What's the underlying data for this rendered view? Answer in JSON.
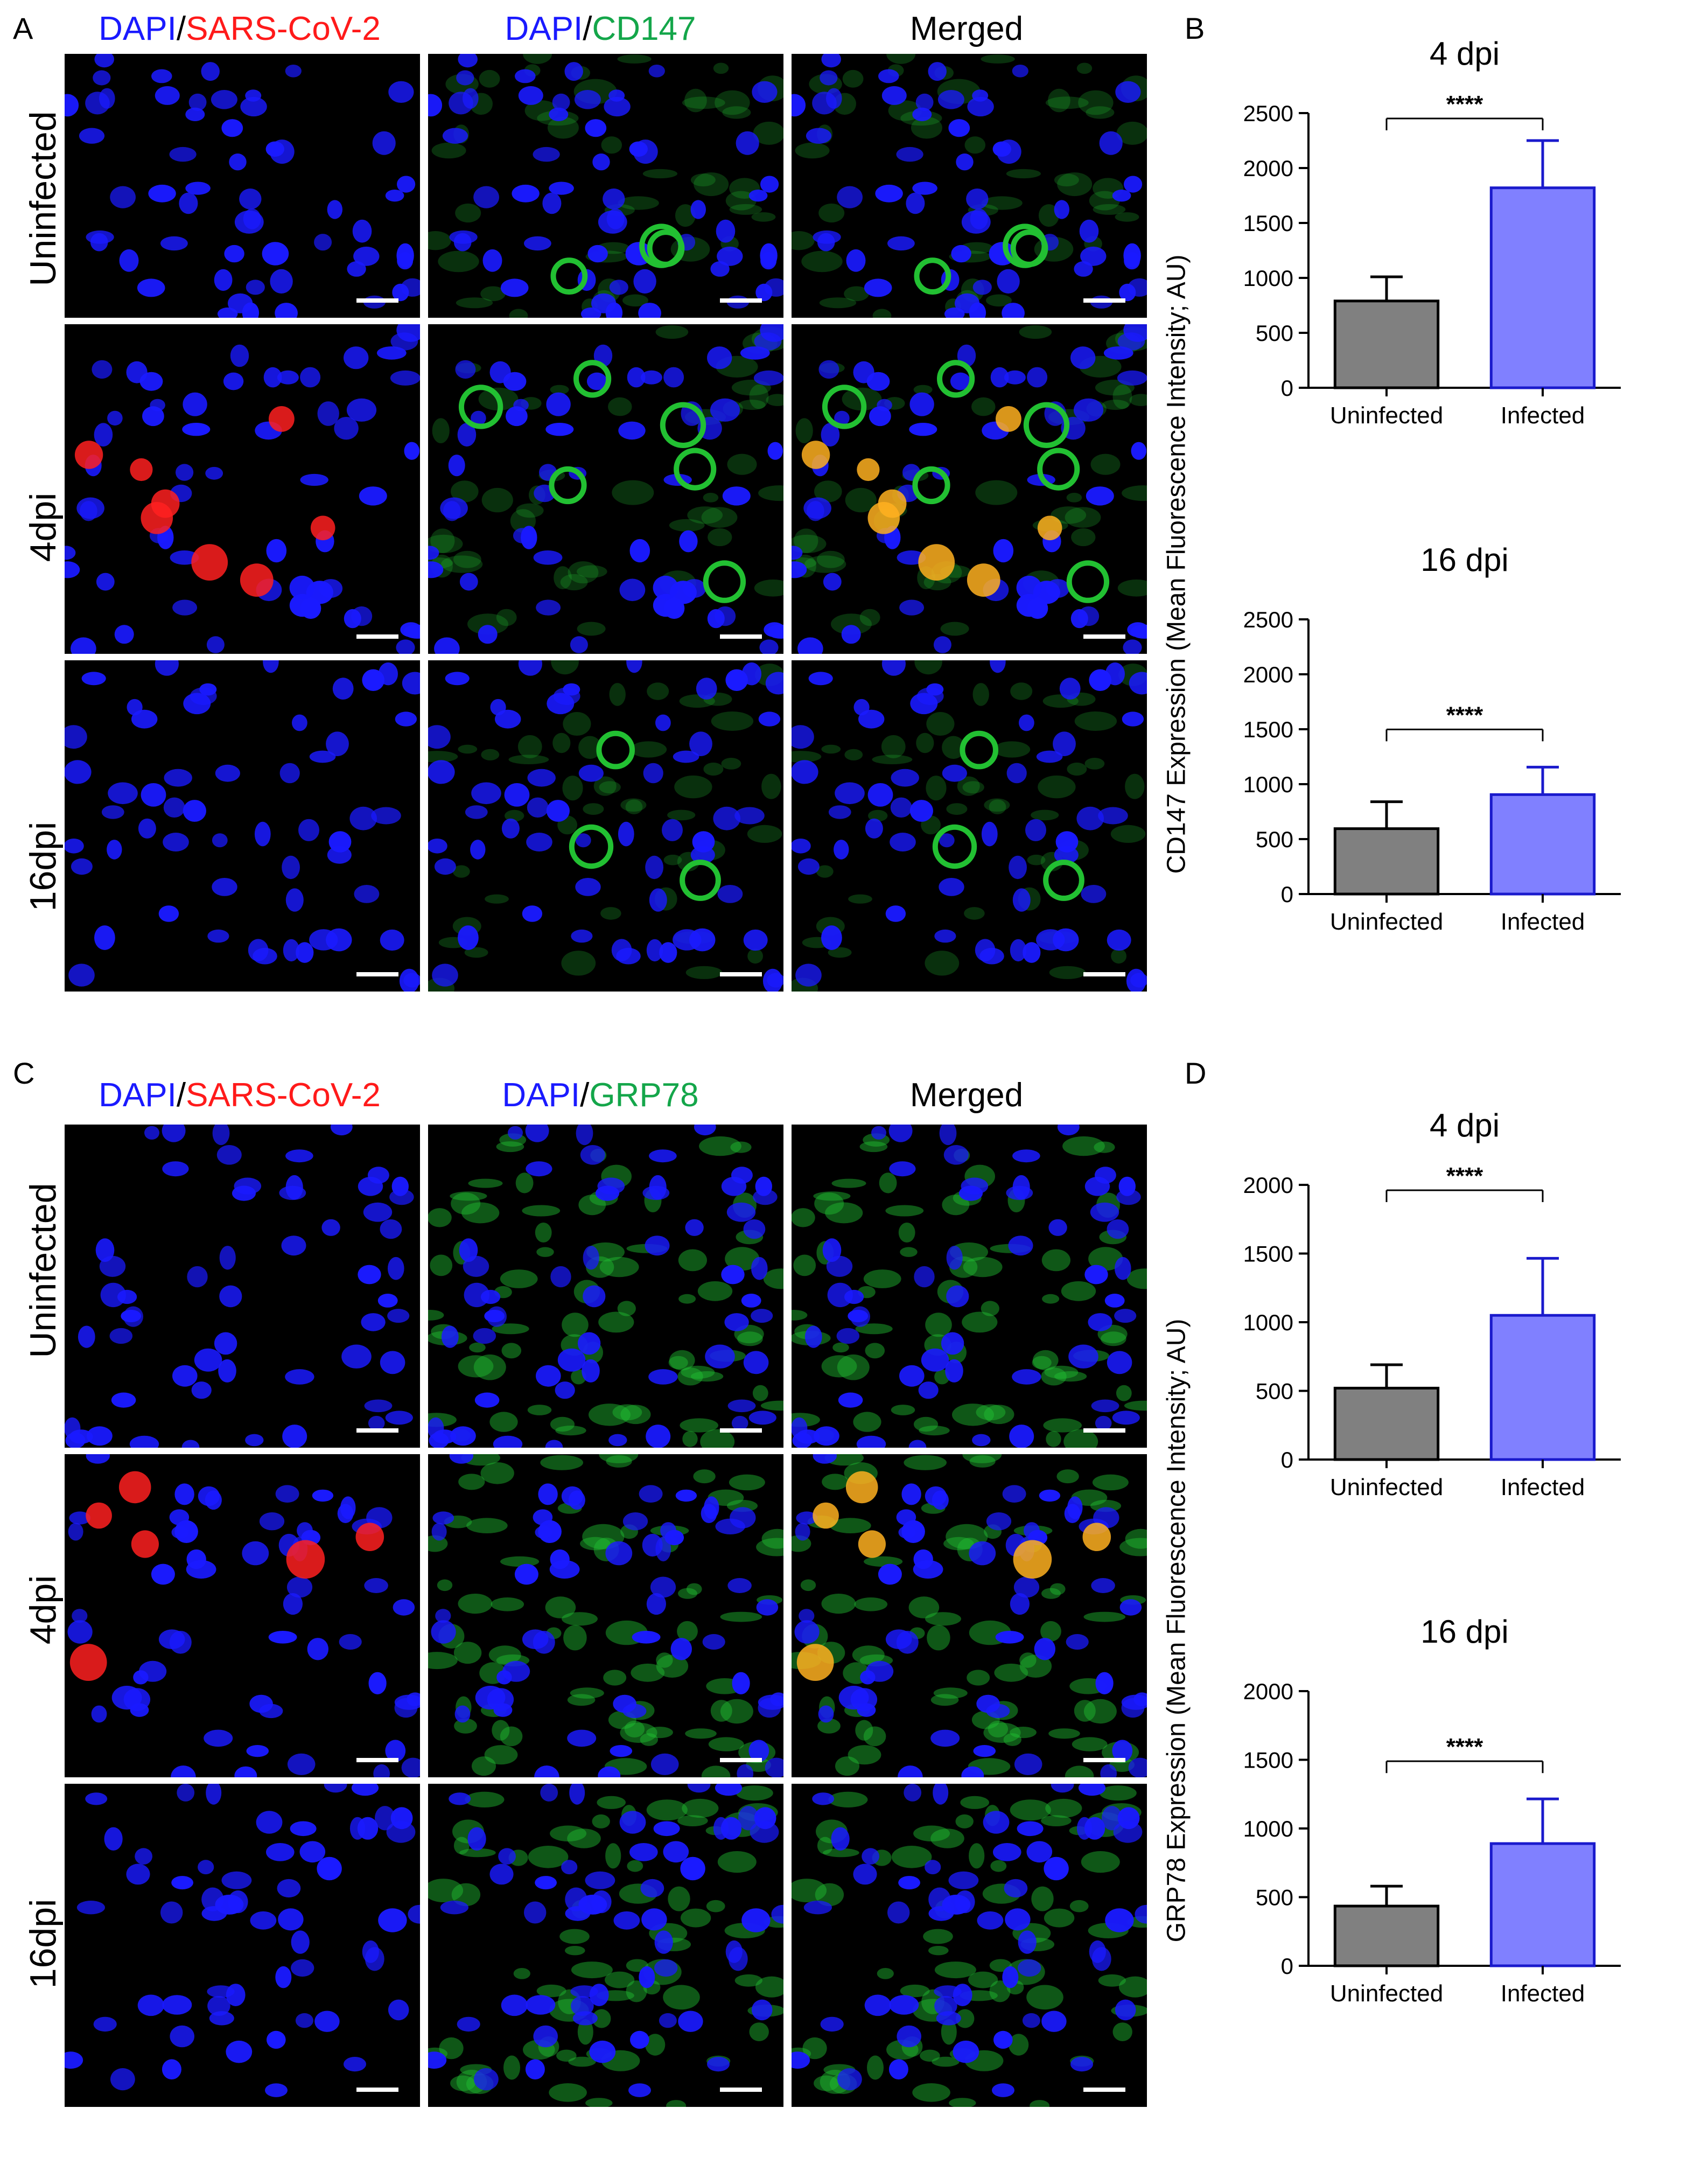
{
  "figure": {
    "panels": [
      {
        "letter": "A",
        "stains": [
          {
            "parts": [
              "DAPI",
              "/",
              "SARS-CoV-2"
            ],
            "colors": [
              "#1a1aff",
              "#000000",
              "#ff1a1a"
            ]
          },
          {
            "parts": [
              "DAPI",
              "/",
              "CD147"
            ],
            "colors": [
              "#1a1aff",
              "#000000",
              "#14a64a"
            ]
          },
          {
            "parts": [
              "Merged"
            ],
            "colors": [
              "#000000"
            ]
          }
        ],
        "rows": [
          "Uninfected",
          "4dpi",
          "16dpi"
        ]
      },
      {
        "letter": "C",
        "stains": [
          {
            "parts": [
              "DAPI",
              "/",
              "SARS-CoV-2"
            ],
            "colors": [
              "#1a1aff",
              "#000000",
              "#ff1a1a"
            ]
          },
          {
            "parts": [
              "DAPI",
              "/",
              "GRP78"
            ],
            "colors": [
              "#1a1aff",
              "#000000",
              "#14a64a"
            ]
          },
          {
            "parts": [
              "Merged"
            ],
            "colors": [
              "#000000"
            ]
          }
        ],
        "rows": [
          "Uninfected",
          "4dpi",
          "16dpi"
        ]
      }
    ],
    "bar_panels": [
      {
        "letter": "B",
        "ylabel": "CD147 Expression  (Mean Fluorescence Intensity; AU)"
      },
      {
        "letter": "D",
        "ylabel": "GRP78 Expression  (Mean Fluorescence Intensity; AU)"
      }
    ],
    "colors": {
      "uninfected_bar": "#808080",
      "infected_bar": "#8080ff",
      "infected_edge": "#1a1acc",
      "nucleus": "#1a1aff",
      "virus": "#ff2020",
      "marker": "#22c032"
    }
  },
  "chart_data": [
    {
      "type": "bar",
      "panel": "B",
      "title": "4 dpi",
      "categories": [
        "Uninfected",
        "Infected"
      ],
      "values": [
        790,
        1820
      ],
      "errors": [
        220,
        430
      ],
      "ylim": [
        0,
        2500
      ],
      "yticks": [
        0,
        500,
        1000,
        1500,
        2000,
        2500
      ],
      "significance": "****"
    },
    {
      "type": "bar",
      "panel": "B",
      "title": "16 dpi",
      "categories": [
        "Uninfected",
        "Infected"
      ],
      "values": [
        595,
        905
      ],
      "errors": [
        245,
        250
      ],
      "ylim": [
        0,
        2500
      ],
      "yticks": [
        0,
        500,
        1000,
        1500,
        2000,
        2500
      ],
      "significance": "****"
    },
    {
      "type": "bar",
      "panel": "D",
      "title": "4 dpi",
      "categories": [
        "Uninfected",
        "Infected"
      ],
      "values": [
        520,
        1050
      ],
      "errors": [
        170,
        415
      ],
      "ylim": [
        0,
        2000
      ],
      "yticks": [
        0,
        500,
        1000,
        1500,
        2000
      ],
      "significance": "****"
    },
    {
      "type": "bar",
      "panel": "D",
      "title": "16 dpi",
      "categories": [
        "Uninfected",
        "Infected"
      ],
      "values": [
        435,
        890
      ],
      "errors": [
        145,
        325
      ],
      "ylim": [
        0,
        2000
      ],
      "yticks": [
        0,
        500,
        1000,
        1500,
        2000
      ],
      "significance": "****"
    }
  ]
}
